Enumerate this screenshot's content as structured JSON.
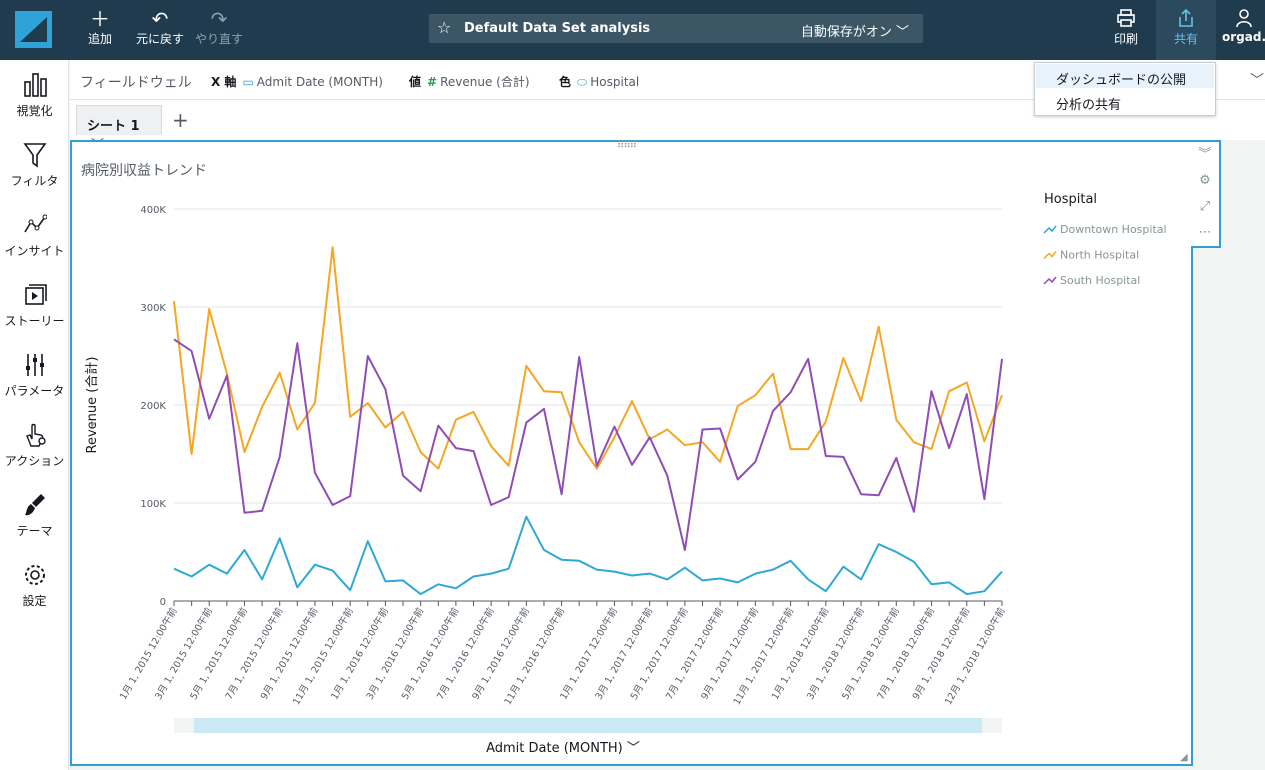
{
  "topbar": {
    "add_label": "追加",
    "undo_label": "元に戻す",
    "redo_label": "やり直す",
    "analysis_name": "Default Data Set analysis",
    "autosave_label": "自動保存がオン",
    "print_label": "印刷",
    "share_label": "共有",
    "user_label": "orgad..."
  },
  "share_menu": {
    "items": [
      "ダッシュボードの公開",
      "分析の共有"
    ]
  },
  "sidebar": {
    "items": [
      {
        "label": "視覚化",
        "icon": "bar-chart-icon"
      },
      {
        "label": "フィルタ",
        "icon": "filter-icon"
      },
      {
        "label": "インサイト",
        "icon": "insight-icon"
      },
      {
        "label": "ストーリー",
        "icon": "story-icon"
      },
      {
        "label": "パラメータ",
        "icon": "parameter-icon"
      },
      {
        "label": "アクション",
        "icon": "action-icon"
      },
      {
        "label": "テーマ",
        "icon": "theme-icon"
      },
      {
        "label": "設定",
        "icon": "settings-icon"
      }
    ]
  },
  "fieldwell": {
    "title": "フィールドウェル",
    "x_axis_label": "X 軸",
    "x_axis_field": "Admit Date (MONTH)",
    "value_label": "値",
    "value_field": "Revenue (合計)",
    "color_label": "色",
    "color_field": "Hospital"
  },
  "sheet": {
    "tab_label": "シート 1"
  },
  "visual": {
    "title": "病院別収益トレンド"
  },
  "chart_data": {
    "type": "line",
    "title": "病院別収益トレンド",
    "xlabel": "Admit Date (MONTH)",
    "ylabel": "Revenue (合計)",
    "ylim": [
      0,
      400000
    ],
    "yticks": [
      "0",
      "100K",
      "200K",
      "300K",
      "400K"
    ],
    "grid": true,
    "legend_title": "Hospital",
    "legend_position": "right",
    "xtick_labels": [
      "1月 1, 2015 12:00午前",
      "3月 1, 2015 12:00午前",
      "5月 1, 2015 12:00午前",
      "7月 1, 2015 12:00午前",
      "9月 1, 2015 12:00午前",
      "11月 1, 2015 12:00午前",
      "1月 1, 2016 12:00午前",
      "3月 1, 2016 12:00午前",
      "5月 1, 2016 12:00午前",
      "7月 1, 2016 12:00午前",
      "9月 1, 2016 12:00午前",
      "11月 1, 2016 12:00午前",
      "1月 1, 2017 12:00午前",
      "3月 1, 2017 12:00午前",
      "5月 1, 2017 12:00午前",
      "7月 1, 2017 12:00午前",
      "9月 1, 2017 12:00午前",
      "11月 1, 2017 12:00午前",
      "1月 1, 2018 12:00午前",
      "3月 1, 2018 12:00午前",
      "5月 1, 2018 12:00午前",
      "7月 1, 2018 12:00午前",
      "9月 1, 2018 12:00午前",
      "12月 1, 2018 12:00午前"
    ],
    "series": [
      {
        "name": "Downtown Hospital",
        "color": "#2ea8d6",
        "values": [
          33000,
          25000,
          37000,
          28000,
          52000,
          22000,
          64000,
          14000,
          37000,
          31000,
          11000,
          61000,
          20000,
          21000,
          7000,
          17000,
          13000,
          25000,
          28000,
          33000,
          86000,
          52000,
          42000,
          41000,
          32000,
          30000,
          26000,
          28000,
          22000,
          34000,
          21000,
          23000,
          19000,
          28000,
          32000,
          41000,
          22000,
          10000,
          35000,
          22000,
          58000,
          50000,
          40000,
          17000,
          19000,
          7000,
          10000,
          30000
        ]
      },
      {
        "name": "North Hospital",
        "color": "#f5a623",
        "values": [
          306000,
          150000,
          298000,
          232000,
          152000,
          198000,
          233000,
          175000,
          202000,
          361000,
          188000,
          202000,
          177000,
          193000,
          152000,
          135000,
          185000,
          193000,
          158000,
          138000,
          240000,
          214000,
          213000,
          162000,
          135000,
          167000,
          204000,
          165000,
          175000,
          159000,
          162000,
          142000,
          199000,
          210000,
          232000,
          155000,
          155000,
          183000,
          248000,
          204000,
          280000,
          185000,
          162000,
          155000,
          214000,
          223000,
          163000,
          210000
        ]
      },
      {
        "name": "South Hospital",
        "color": "#8f4db5",
        "values": [
          267000,
          255000,
          186000,
          230000,
          90000,
          92000,
          147000,
          263000,
          131000,
          98000,
          107000,
          250000,
          216000,
          128000,
          112000,
          179000,
          156000,
          153000,
          98000,
          106000,
          182000,
          196000,
          109000,
          249000,
          138000,
          178000,
          139000,
          167000,
          128000,
          52000,
          175000,
          176000,
          124000,
          142000,
          194000,
          213000,
          247000,
          148000,
          147000,
          109000,
          108000,
          146000,
          91000,
          214000,
          156000,
          211000,
          104000,
          247000
        ]
      }
    ]
  },
  "colors": {
    "topbar": "#1f3b4d",
    "accent": "#2ea0d4"
  }
}
